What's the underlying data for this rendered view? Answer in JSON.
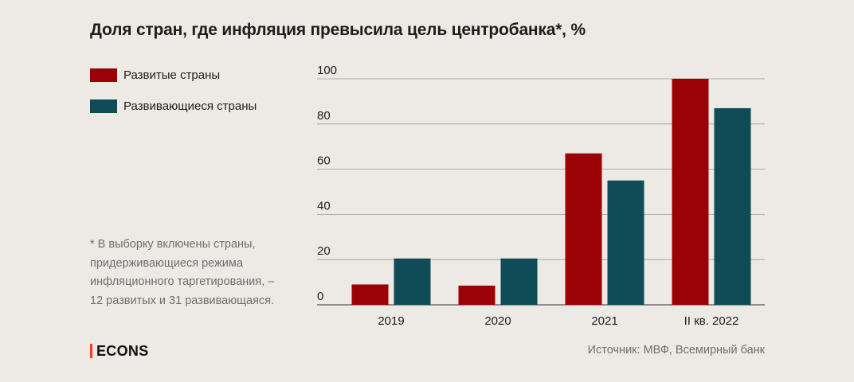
{
  "title": "Доля стран, где инфляция превысила цель центробанка*, %",
  "legend": [
    {
      "label": "Развитые страны",
      "color": "#9b0208"
    },
    {
      "label": "Развивающиеся страны",
      "color": "#0f4c58"
    }
  ],
  "footnote": [
    "* В выборку включены страны,",
    "придерживающиеся режима",
    "инфляционного таргетирования, –",
    "12 развитых и 31 развивающаяся."
  ],
  "brand": "ECONS",
  "source": "Источник: МВФ, Всемирный банк",
  "chart_data": {
    "type": "bar",
    "title": "Доля стран, где инфляция превысила цель центробанка*, %",
    "categories": [
      "2019",
      "2020",
      "2021",
      "II кв. 2022"
    ],
    "series": [
      {
        "name": "Развитые страны",
        "color": "#9b0208",
        "values": [
          9,
          8.5,
          67,
          100
        ]
      },
      {
        "name": "Развивающиеся страны",
        "color": "#0f4c58",
        "values": [
          20.5,
          20.5,
          55,
          87
        ]
      }
    ],
    "yticks": [
      0,
      20,
      40,
      60,
      80,
      100
    ],
    "ylim": [
      0,
      100
    ],
    "grid": true,
    "legend_position": "top-left"
  }
}
